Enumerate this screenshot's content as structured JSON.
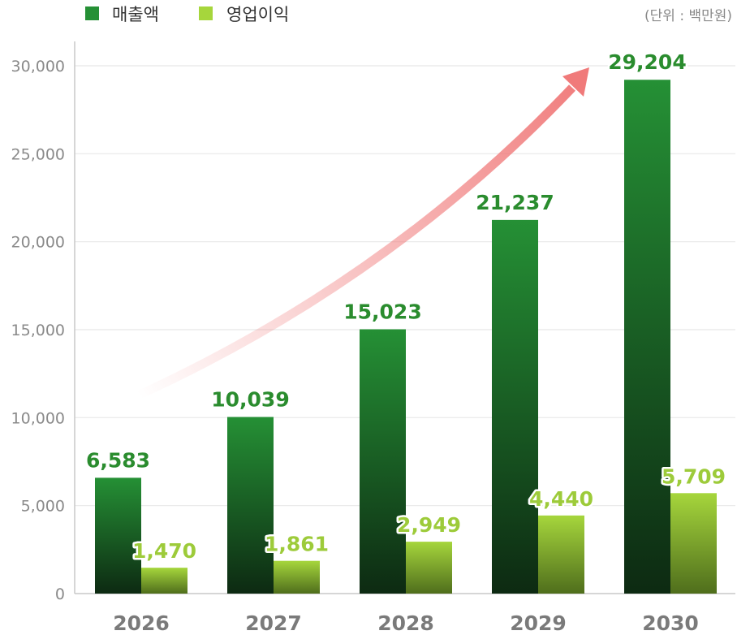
{
  "legend": {
    "sales": "매출액",
    "profit": "영업이익"
  },
  "unit_label": "(단위 : 백만원)",
  "colors": {
    "sales_top": "#259035",
    "sales_bottom": "#0d2a12",
    "profit_top": "#a6d63c",
    "profit_bottom": "#4f6e1c",
    "sales_label": "#2a8c2e",
    "profit_label": "#9dcb3a",
    "grid": "#e8e8e8",
    "axis": "#c8c8c8",
    "arrow": "#f07a7a"
  },
  "chart_data": {
    "type": "bar",
    "title": "",
    "xlabel": "",
    "ylabel": "",
    "categories": [
      "2026",
      "2027",
      "2028",
      "2029",
      "2030"
    ],
    "series": [
      {
        "name": "매출액",
        "values": [
          6583,
          10039,
          15023,
          21237,
          29204
        ],
        "labels": [
          "6,583",
          "10,039",
          "15,023",
          "21,237",
          "29,204"
        ]
      },
      {
        "name": "영업이익",
        "values": [
          1470,
          1861,
          2949,
          4440,
          5709
        ],
        "labels": [
          "1,470",
          "1,861",
          "2,949",
          "4,440",
          "5,709"
        ]
      }
    ],
    "ylim": [
      0,
      30000
    ],
    "yticks": [
      0,
      5000,
      10000,
      15000,
      20000,
      25000,
      30000
    ],
    "ytick_labels": [
      "0",
      "5,000",
      "10,000",
      "15,000",
      "20,000",
      "25,000",
      "30,000"
    ],
    "grid": true,
    "legend_position": "top-left",
    "annotation": "upward growth arrow"
  }
}
